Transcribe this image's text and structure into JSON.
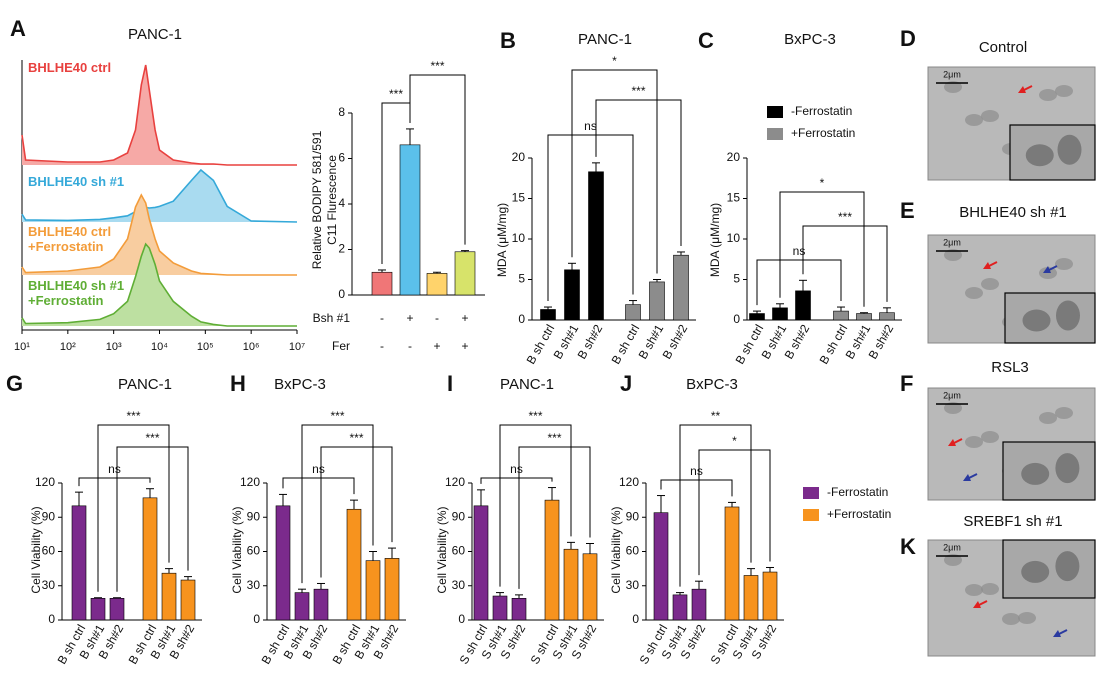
{
  "chart_data": [
    {
      "panel": "A",
      "type": "area",
      "title": "PANC-1",
      "xscale": "log",
      "xlim": [
        10,
        10000000
      ],
      "xticks": [
        {
          "value": 10,
          "label": "10¹"
        },
        {
          "value": 100,
          "label": "10²"
        },
        {
          "value": 1000,
          "label": "10³"
        },
        {
          "value": 10000,
          "label": "10⁴"
        },
        {
          "value": 100000,
          "label": "10⁵"
        },
        {
          "value": 1000000,
          "label": "10⁶"
        },
        {
          "value": 10000000,
          "label": "10⁷"
        }
      ],
      "x": [
        10,
        12,
        100,
        500,
        1000,
        2000,
        3000,
        4000,
        5000,
        6000,
        8000,
        10000,
        20000,
        50000,
        80000,
        150000,
        300000,
        1000000,
        10000000
      ],
      "series": [
        {
          "name": "BHLHE40 ctrl",
          "color": "#e8413f",
          "fill": "#f6a9a6",
          "values": [
            30,
            5,
            3,
            3,
            5,
            12,
            35,
            80,
            100,
            75,
            35,
            15,
            5,
            2,
            1,
            1,
            0,
            0,
            0
          ]
        },
        {
          "name": "BHLHE40 sh #1",
          "color": "#35a9d9",
          "fill": "#a9dbf0",
          "values": [
            15,
            4,
            3,
            5,
            8,
            12,
            20,
            25,
            28,
            27,
            28,
            30,
            40,
            80,
            100,
            80,
            30,
            2,
            0
          ]
        },
        {
          "name": "BHLHE40 ctrl\n+Ferrostatin",
          "color": "#f39c3a",
          "fill": "#f8cda0",
          "values": [
            10,
            3,
            5,
            10,
            20,
            45,
            85,
            100,
            90,
            70,
            45,
            30,
            15,
            5,
            2,
            1,
            0,
            0,
            0
          ]
        },
        {
          "name": "BHLHE40 sh #1\n+Ferrostatin",
          "color": "#5fae35",
          "fill": "#bde0a1",
          "values": [
            10,
            3,
            4,
            8,
            15,
            30,
            60,
            85,
            100,
            95,
            75,
            55,
            30,
            12,
            5,
            2,
            0,
            0,
            0
          ]
        }
      ]
    },
    {
      "type": "bar",
      "ylabel": [
        "Relative BODIPY 581/591",
        "C11 Flurescence"
      ],
      "ylim": [
        0,
        8
      ],
      "yticks": [
        0,
        2,
        4,
        6,
        8
      ],
      "values": [
        1.0,
        6.6,
        0.95,
        1.9
      ],
      "errors": [
        0.1,
        0.7,
        0.05,
        0.05
      ],
      "colors": [
        "#f07677",
        "#5bc0eb",
        "#ffd36b",
        "#d7e36a"
      ],
      "rows": [
        {
          "label": "Bsh #1",
          "values": [
            "-",
            "+",
            "-",
            "+"
          ]
        },
        {
          "label": "Fer",
          "values": [
            "-",
            "-",
            "+",
            "+"
          ]
        }
      ],
      "annotations": [
        "***",
        "***"
      ]
    },
    {
      "panel": "B",
      "type": "bar",
      "title": "PANC-1",
      "ylabel": "MDA (μM/mg)",
      "ylim": [
        0,
        20
      ],
      "yticks": [
        0,
        5,
        10,
        15,
        20
      ],
      "categories": [
        "B sh ctrl",
        "B sh#1",
        "B sh#2",
        "B sh ctrl",
        "B sh#1",
        "B sh#2"
      ],
      "series": [
        {
          "color": "#000000",
          "values": [
            1.3,
            6.2,
            18.3,
            null,
            null,
            null
          ],
          "errors": [
            0.3,
            0.8,
            1.1,
            null,
            null,
            null
          ]
        },
        {
          "color": "#8c8c8c",
          "values": [
            null,
            null,
            null,
            1.9,
            4.7,
            8.0
          ],
          "errors": [
            null,
            null,
            null,
            0.5,
            0.3,
            0.4
          ]
        }
      ],
      "annotations": [
        "*",
        "***",
        "ns"
      ]
    },
    {
      "panel": "C",
      "type": "bar",
      "title": "BxPC-3",
      "ylabel": "MDA (μM/mg)",
      "ylim": [
        0,
        20
      ],
      "yticks": [
        0,
        5,
        10,
        15,
        20
      ],
      "legend": true,
      "categories": [
        "B sh ctrl",
        "B sh#1",
        "B sh#2",
        "B sh ctrl",
        "B sh#1",
        "B sh#2"
      ],
      "series": [
        {
          "name": "-Ferrostatin",
          "color": "#000000",
          "values": [
            0.8,
            1.5,
            3.6,
            null,
            null,
            null
          ],
          "errors": [
            0.3,
            0.5,
            1.3,
            null,
            null,
            null
          ]
        },
        {
          "name": "+Ferrostatin",
          "color": "#8c8c8c",
          "values": [
            null,
            null,
            null,
            1.1,
            0.8,
            0.9
          ],
          "errors": [
            null,
            null,
            null,
            0.5,
            0.1,
            0.6
          ]
        }
      ],
      "annotations": [
        "*",
        "***",
        "ns"
      ]
    },
    {
      "panel": "G",
      "type": "bar",
      "title": "PANC-1",
      "ylabel": "Cell Viability (%)",
      "ylim": [
        0,
        120
      ],
      "yticks": [
        0,
        30,
        60,
        90,
        120
      ],
      "categories": [
        "B sh ctrl",
        "B sh#1",
        "B sh#2",
        "B sh ctrl",
        "B sh#1",
        "B sh#2"
      ],
      "series": [
        {
          "color": "#7b2a8c",
          "values": [
            100,
            19,
            19,
            null,
            null,
            null
          ],
          "errors": [
            12,
            0.5,
            0.5,
            null,
            null,
            null
          ]
        },
        {
          "color": "#f7931e",
          "values": [
            null,
            null,
            null,
            107,
            41,
            35
          ],
          "errors": [
            null,
            null,
            null,
            8,
            4,
            3
          ]
        }
      ],
      "annotations": [
        "***",
        "***",
        "ns"
      ]
    },
    {
      "panel": "H",
      "type": "bar",
      "title": "BxPC-3",
      "ylabel": "Cell Viability (%)",
      "ylim": [
        0,
        120
      ],
      "yticks": [
        0,
        30,
        60,
        90,
        120
      ],
      "categories": [
        "B sh ctrl",
        "B sh#1",
        "B sh#2",
        "B sh ctrl",
        "B sh#1",
        "B sh#2"
      ],
      "series": [
        {
          "color": "#7b2a8c",
          "values": [
            100,
            24,
            27,
            null,
            null,
            null
          ],
          "errors": [
            10,
            3,
            5,
            null,
            null,
            null
          ]
        },
        {
          "color": "#f7931e",
          "values": [
            null,
            null,
            null,
            97,
            52,
            54
          ],
          "errors": [
            null,
            null,
            null,
            8,
            8,
            9
          ]
        }
      ],
      "annotations": [
        "***",
        "***",
        "ns"
      ]
    },
    {
      "panel": "I",
      "type": "bar",
      "title": "PANC-1",
      "ylabel": "Cell Viability (%)",
      "ylim": [
        0,
        120
      ],
      "yticks": [
        0,
        30,
        60,
        90,
        120
      ],
      "categories": [
        "S sh ctrl",
        "S sh#1",
        "S sh#2",
        "S sh ctrl",
        "S sh#1",
        "S sh#2"
      ],
      "series": [
        {
          "color": "#7b2a8c",
          "values": [
            100,
            21,
            19,
            null,
            null,
            null
          ],
          "errors": [
            14,
            3,
            3,
            null,
            null,
            null
          ]
        },
        {
          "color": "#f7931e",
          "values": [
            null,
            null,
            null,
            105,
            62,
            58
          ],
          "errors": [
            null,
            null,
            null,
            11,
            6,
            9
          ]
        }
      ],
      "annotations": [
        "***",
        "***",
        "ns"
      ]
    },
    {
      "panel": "J",
      "type": "bar",
      "title": "BxPC-3",
      "ylabel": "Cell Viability (%)",
      "ylim": [
        0,
        120
      ],
      "yticks": [
        0,
        30,
        60,
        90,
        120
      ],
      "legend": true,
      "categories": [
        "S sh ctrl",
        "S sh#1",
        "S sh#2",
        "S sh ctrl",
        "S sh#1",
        "S sh#2"
      ],
      "series": [
        {
          "name": "-Ferrostatin",
          "color": "#7b2a8c",
          "values": [
            94,
            22,
            27,
            null,
            null,
            null
          ],
          "errors": [
            15,
            2,
            7,
            null,
            null,
            null
          ]
        },
        {
          "name": "+Ferrostatin",
          "color": "#f7931e",
          "values": [
            null,
            null,
            null,
            99,
            39,
            42
          ],
          "errors": [
            null,
            null,
            null,
            4,
            6,
            4
          ]
        }
      ],
      "annotations": [
        "**",
        "*",
        "ns"
      ]
    }
  ],
  "images": [
    {
      "panel": "D",
      "title": "Control",
      "scale": "2μm"
    },
    {
      "panel": "E",
      "title": "BHLHE40 sh #1",
      "scale": "2μm"
    },
    {
      "panel": "F",
      "title": "RSL3",
      "scale": "2μm"
    },
    {
      "panel": "K",
      "title": "SREBF1 sh #1",
      "scale": "2μm"
    }
  ]
}
